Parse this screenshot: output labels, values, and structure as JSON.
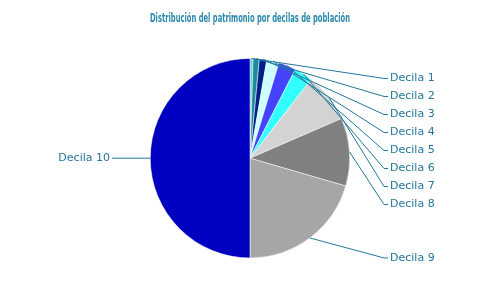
{
  "chart_data": {
    "type": "pie",
    "title": "Distribución del patrimonio por decilas de población",
    "categories": [
      "Decila 1",
      "Decila 2",
      "Decila 3",
      "Decila 4",
      "Decila 5",
      "Decila 6",
      "Decila 7",
      "Decila 8",
      "Decila 9",
      "Decila 10"
    ],
    "values": [
      0.5,
      1,
      1.2,
      2,
      2.8,
      3,
      8,
      11,
      20.5,
      50
    ],
    "colors": [
      "#66cccc",
      "#1a8c9c",
      "#002288",
      "#ccffff",
      "#4444ff",
      "#33ffff",
      "#d3d3d3",
      "#808080",
      "#a6a6a6",
      "#0000c0"
    ],
    "legend": false
  }
}
